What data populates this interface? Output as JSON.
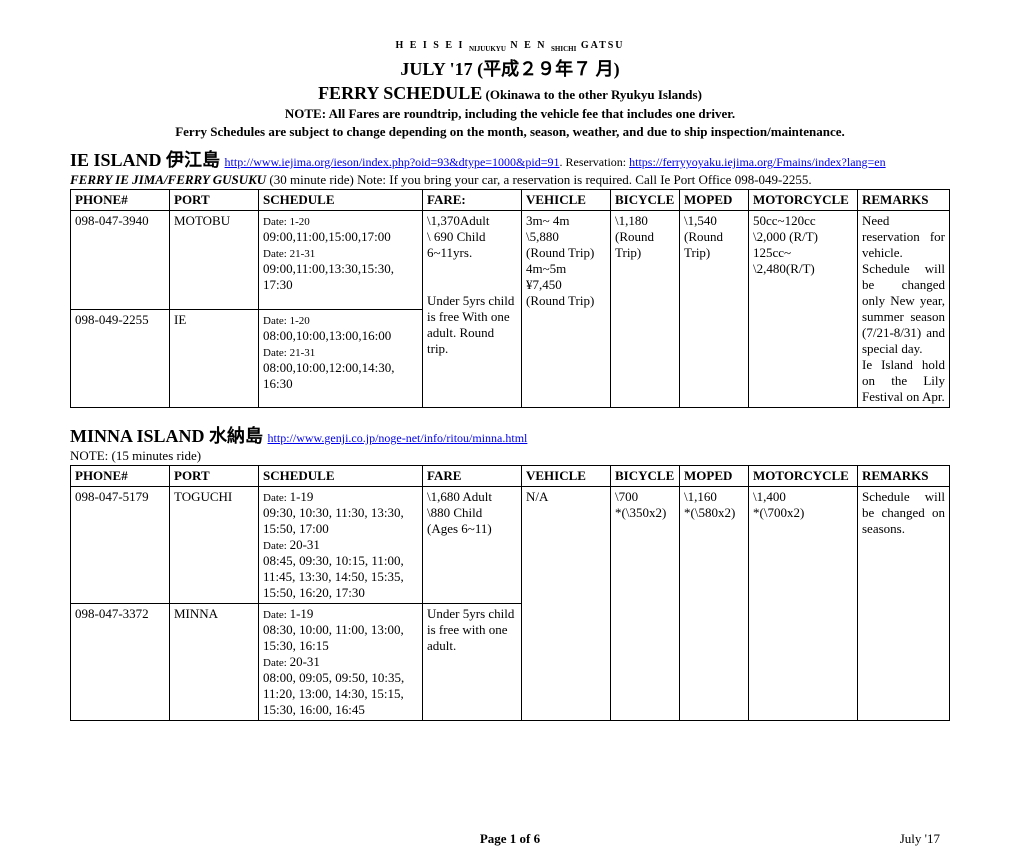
{
  "header": {
    "ruby_html": "H E I S E I <sub>NIJUUKYU</sub> N E N <sub>SHICHI</sub> GATSU",
    "title_line1": "JULY '17 (平成２９年７ 月)",
    "title_line2_main": "FERRY SCHEDULE",
    "title_line2_sub": " (Okinawa to the other Ryukyu Islands)",
    "note1": "NOTE:  All Fares are roundtrip, including the vehicle fee that includes one driver.",
    "note2": "Ferry Schedules are subject to change depending on the month, season, weather, and due to ship inspection/maintenance."
  },
  "ie": {
    "island_name": "IE ISLAND 伊江島",
    "link1": "http://www.iejima.org/ieson/index.php?oid=93&dtype=1000&pid=91",
    "after1": ". Reservation: ",
    "link2": "https://ferryyoyaku.iejima.org/Fmains/index?lang=en",
    "subnote_italic": "FERRY IE JIMA/FERRY GUSUKU ",
    "subnote_rest": " (30 minute ride) Note:  If you bring your car, a reservation is required.  Call Ie Port Office 098-049-2255.",
    "headers": [
      "PHONE#",
      "PORT",
      "SCHEDULE",
      "FARE:",
      "VEHICLE",
      "BICYCLE",
      "MOPED",
      "MOTORCYCLE",
      "REMARKS"
    ],
    "row1": {
      "phone": "098-047-3940",
      "port": "MOTOBU",
      "sched_d1": "Date: 1-20",
      "sched_t1": "09:00,11:00,15:00,17:00",
      "sched_d2": "Date: 21-31",
      "sched_t2": "09:00,11:00,13:30,15:30, 17:30",
      "fare": "\\1,370Adult\n\\ 690 Child 6~11yrs.\n\nUnder 5yrs child is free With one adult. Round trip.",
      "vehicle": "3m~ 4m\n\\5,880\n(Round Trip)\n4m~5m\n¥7,450\n(Round Trip)",
      "bicycle": "\\1,180\n(Round Trip)",
      "moped": "\\1,540\n(Round Trip)",
      "motorcycle": "50cc~120cc\n\\2,000 (R/T)\n125cc~\n\\2,480(R/T)",
      "remarks": "  Need reservation for vehicle.\nSchedule will be changed only New year, summer season (7/21-8/31) and special day.\n  Ie Island hold on the Lily Festival on Apr."
    },
    "row2": {
      "phone": "098-049-2255",
      "port": "IE",
      "sched_d1": "Date: 1-20",
      "sched_t1": "08:00,10:00,13:00,16:00",
      "sched_d2": "Date: 21-31",
      "sched_t2": "08:00,10:00,12:00,14:30, 16:30"
    }
  },
  "minna": {
    "island_name": "MINNA ISLAND 水納島",
    "link": "http://www.genji.co.jp/noge-net/info/ritou/minna.html",
    "note": "NOTE: (15 minutes ride)",
    "headers": [
      "PHONE#",
      "PORT",
      "SCHEDULE",
      "FARE",
      "VEHICLE",
      "BICYCLE",
      "MOPED",
      "MOTORCYCLE",
      "REMARKS"
    ],
    "row1": {
      "phone": "098-047-5179",
      "port": "TOGUCHI",
      "sched_d1": "Date: 1-19",
      "sched_t1": "09:30, 10:30, 11:30, 13:30, 15:50, 17:00",
      "sched_d2": "Date: 20-31",
      "sched_t2": "08:45, 09:30, 10:15, 11:00, 11:45, 13:30, 14:50, 15:35, 15:50, 16:20, 17:30",
      "fare": "\\1,680 Adult\n\\880 Child\n(Ages 6~11)",
      "vehicle": "N/A",
      "bicycle": "\\700\n*(\\350x2)",
      "moped": "\\1,160\n*(\\580x2)",
      "motorcycle": "\\1,400\n*(\\700x2)",
      "remarks": "Schedule will be changed on seasons."
    },
    "row2": {
      "phone": "098-047-3372",
      "port": "MINNA",
      "sched_d1": "Date: 1-19",
      "sched_t1": "08:30, 10:00, 11:00, 13:00, 15:30, 16:15",
      "sched_d2": "Date: 20-31",
      "sched_t2": "08:00, 09:05, 09:50, 10:35, 11:20, 13:00, 14:30, 15:15, 15:30, 16:00, 16:45",
      "fare": "Under 5yrs child is free with one adult."
    }
  },
  "footer": {
    "page": "Page 1 of 6",
    "right": "July '17"
  }
}
